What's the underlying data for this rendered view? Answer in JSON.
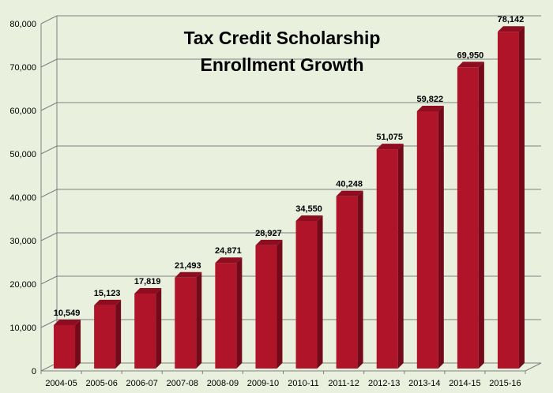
{
  "chart_data": {
    "type": "bar",
    "title_lines": [
      "Tax Credit Scholarship",
      "Enrollment Growth"
    ],
    "categories": [
      "2004-05",
      "2005-06",
      "2006-07",
      "2007-08",
      "2008-09",
      "2009-10",
      "2010-11",
      "2011-12",
      "2012-13",
      "2013-14",
      "2014-15",
      "2015-16"
    ],
    "values": [
      10549,
      15123,
      17819,
      21493,
      24871,
      28927,
      34550,
      40248,
      51075,
      59822,
      69950,
      78142
    ],
    "data_labels": [
      "10,549",
      "15,123",
      "17,819",
      "21,493",
      "24,871",
      "28,927",
      "34,550",
      "40,248",
      "51,075",
      "59,822",
      "69,950",
      "78,142"
    ],
    "yticks": [
      0,
      10000,
      20000,
      30000,
      40000,
      50000,
      60000,
      70000,
      80000
    ],
    "ytick_labels": [
      "0",
      "10,000",
      "20,000",
      "30,000",
      "40,000",
      "50,000",
      "60,000",
      "70,000",
      "80,000"
    ],
    "ylim": [
      0,
      80000
    ],
    "grid": true,
    "xlabel": "",
    "ylabel": "",
    "colors": {
      "background": "#e9f0de",
      "bar_front": "#b01428",
      "bar_side": "#74091a",
      "bar_top": "#8e0d20",
      "gridline": "#7f7f7f"
    }
  }
}
